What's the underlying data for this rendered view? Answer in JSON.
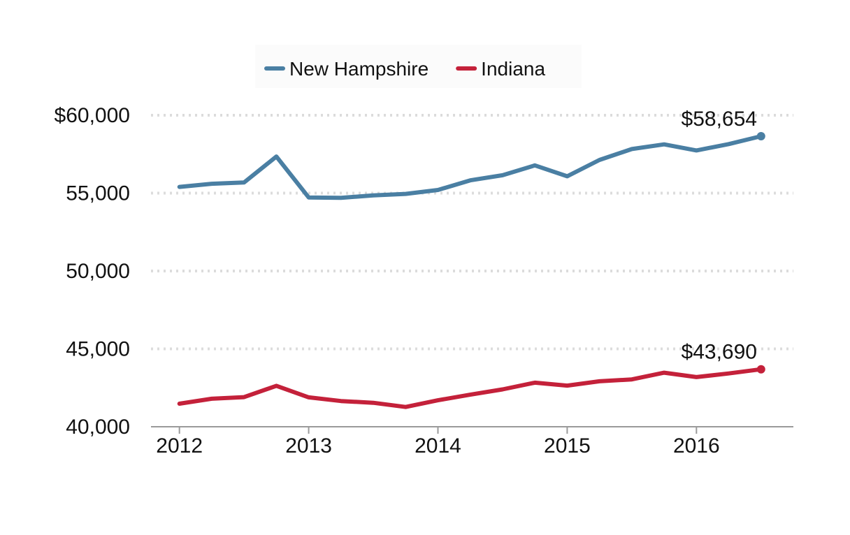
{
  "chart_data": {
    "type": "line",
    "title": "",
    "xlabel": "",
    "ylabel": "",
    "x_ticks": [
      "2012",
      "2013",
      "2014",
      "2015",
      "2016"
    ],
    "x": [
      2012.0,
      2012.25,
      2012.5,
      2012.75,
      2013.0,
      2013.25,
      2013.5,
      2013.75,
      2014.0,
      2014.25,
      2014.5,
      2014.75,
      2015.0,
      2015.25,
      2015.5,
      2015.75,
      2016.0,
      2016.25,
      2016.5
    ],
    "xlim": [
      2011.78,
      2016.75
    ],
    "ylim": [
      40000,
      60000
    ],
    "y_ticks": [
      40000,
      45000,
      50000,
      55000,
      60000
    ],
    "y_tick_labels": [
      "40,000",
      "45,000",
      "50,000",
      "55,000",
      "$60,000"
    ],
    "grid": "horizontal dotted",
    "legend_position": "top",
    "series": [
      {
        "name": "New Hampshire",
        "color": "#4a7fa3",
        "values": [
          55400,
          55600,
          55680,
          57350,
          54720,
          54700,
          54850,
          54950,
          55200,
          55820,
          56150,
          56780,
          56080,
          57130,
          57830,
          58130,
          57740,
          58150,
          58654
        ],
        "end_label": "$58,654"
      },
      {
        "name": "Indiana",
        "color": "#c4213a",
        "values": [
          41480,
          41800,
          41900,
          42630,
          41890,
          41650,
          41540,
          41270,
          41700,
          42060,
          42400,
          42830,
          42640,
          42920,
          43040,
          43470,
          43190,
          43420,
          43690
        ],
        "end_label": "$43,690"
      }
    ]
  }
}
